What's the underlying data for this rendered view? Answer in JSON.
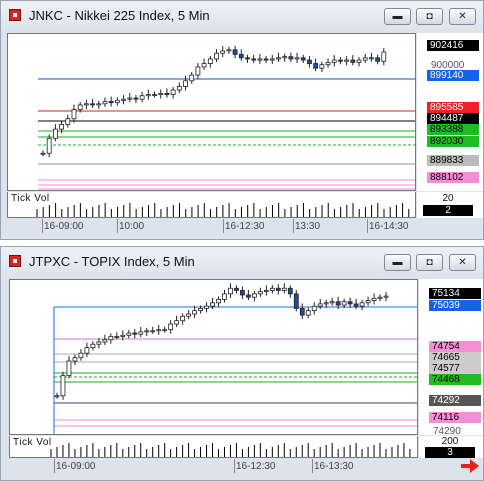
{
  "charts": [
    {
      "title": "JNKC - Nikkei 225 Index, 5 Min",
      "hidden_tick": "900000",
      "tick_vol_label": "Tick Vol",
      "vol_top": "20",
      "vol_bot": "2",
      "time_labels": [
        "16-09:00",
        "10:00",
        "16-12:30",
        "13:30",
        "16-14:30"
      ],
      "price_labels": [
        {
          "text": "902416",
          "bg": "#000000",
          "fg": "#ffffff"
        },
        {
          "text": "899140",
          "bg": "#1463e6",
          "fg": "#ffffff"
        },
        {
          "text": "895585",
          "bg": "#ee2222",
          "fg": "#ffffff"
        },
        {
          "text": "894487",
          "bg": "#000000",
          "fg": "#ffffff"
        },
        {
          "text": "893388",
          "bg": "#22bb22",
          "fg": "#000000"
        },
        {
          "text": "892030",
          "bg": "#22bb22",
          "fg": "#000000"
        },
        {
          "text": "889833",
          "bg": "#bbbbbb",
          "fg": "#000000"
        },
        {
          "text": "888102",
          "bg": "#f48fd6",
          "fg": "#000000"
        }
      ]
    },
    {
      "title": "JTPXC - TOPIX Index, 5 Min",
      "hidden_tick": "74290",
      "tick_vol_label": "Tick Vol",
      "vol_top": "200",
      "vol_bot": "3",
      "time_labels": [
        "16-09:00",
        "16-12:30",
        "16-13:30"
      ],
      "price_labels": [
        {
          "text": "75134",
          "bg": "#000000",
          "fg": "#ffffff"
        },
        {
          "text": "75039",
          "bg": "#1463e6",
          "fg": "#ffffff"
        },
        {
          "text": "74754",
          "bg": "#f48fd6",
          "fg": "#000000"
        },
        {
          "text": "74665",
          "bg": "#cccccc",
          "fg": "#000000"
        },
        {
          "text": "74577",
          "bg": "#cccccc",
          "fg": "#000000"
        },
        {
          "text": "74468",
          "bg": "#22bb22",
          "fg": "#000000"
        },
        {
          "text": "74292",
          "bg": "#555555",
          "fg": "#ffffff"
        },
        {
          "text": "74116",
          "bg": "#f48fd6",
          "fg": "#000000"
        }
      ]
    }
  ],
  "icons": {
    "min": "minimize-icon",
    "max": "maximize-icon",
    "close": "close-icon",
    "arrow": "red-arrow-icon"
  },
  "colors": {
    "up": "#ffffff",
    "down": "#1a4fa0",
    "accent": "#e8221a"
  }
}
